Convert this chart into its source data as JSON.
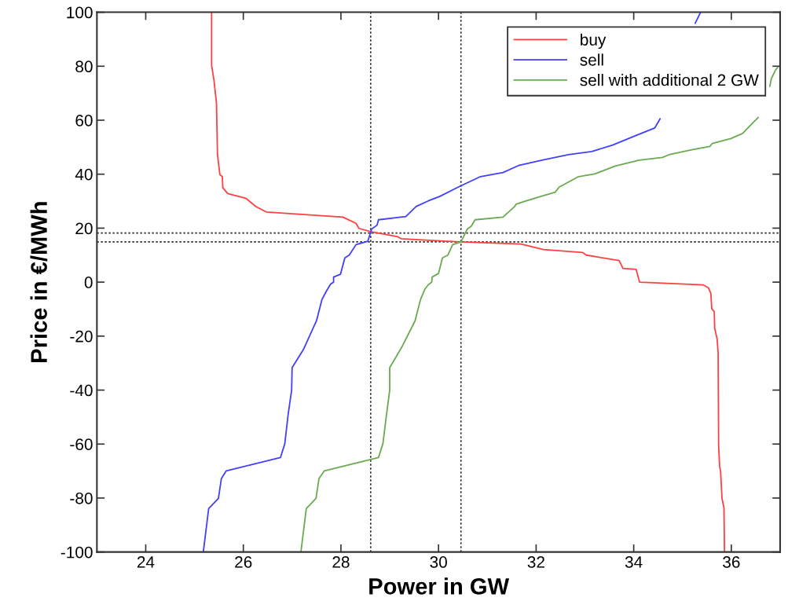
{
  "chart_data": {
    "type": "line",
    "xlabel": "Power in GW",
    "ylabel": "Price in €/MWh",
    "xlim": [
      23,
      37
    ],
    "xticks": [
      24,
      26,
      28,
      30,
      32,
      34,
      36
    ],
    "ylim": [
      -100,
      100
    ],
    "yticks": [
      -100,
      -80,
      -60,
      -40,
      -20,
      0,
      20,
      40,
      60,
      80,
      100
    ],
    "grid": false,
    "legend": "top right",
    "line_style": "solid",
    "marker": "none",
    "series": [
      {
        "name": "buy",
        "color": "#ff4040",
        "x": [
          25.35,
          25.35,
          25.4,
          25.45,
          25.47,
          25.52,
          25.57,
          25.58,
          25.68,
          26.05,
          26.26,
          26.47,
          28.04,
          28.31,
          28.37,
          28.61,
          29.17,
          29.23,
          30.03,
          30.46,
          31.69,
          32.15,
          32.95,
          33.03,
          33.7,
          33.78,
          34.05,
          34.12,
          35.42,
          35.53,
          35.58,
          35.6,
          35.65,
          35.66,
          35.71,
          35.73,
          35.74,
          35.76,
          35.78,
          35.81,
          35.85,
          35.86
        ],
        "values": [
          100,
          80.4,
          74.6,
          66.3,
          47.4,
          39.8,
          39.1,
          35.0,
          32.8,
          31.1,
          28.0,
          26.0,
          24.1,
          21.8,
          19.9,
          18.7,
          16.8,
          16.1,
          15.3,
          14.9,
          14.1,
          12.1,
          11.0,
          10.0,
          8.0,
          5.1,
          4.7,
          0,
          -1.0,
          -2.1,
          -4.1,
          -9.9,
          -10.9,
          -17.2,
          -21.1,
          -26.4,
          -60.4,
          -68.2,
          -70.1,
          -80.3,
          -83.7,
          -100
        ]
      },
      {
        "name": "sell",
        "color": "#4040ff",
        "x": [
          25.18,
          25.29,
          25.49,
          25.55,
          25.65,
          26.76,
          26.85,
          26.92,
          26.99,
          27.0,
          27.23,
          27.5,
          27.61,
          27.71,
          27.79,
          27.85,
          27.85,
          27.99,
          28.08,
          28.17,
          28.31,
          28.55,
          28.63,
          28.74,
          28.77,
          29.33,
          29.54,
          29.79,
          30.03,
          30.4,
          30.86,
          31.32,
          31.64,
          32.12,
          32.66,
          33.14,
          33.57,
          34.0,
          34.43,
          34.54,
          34.9,
          35.26,
          35.37
        ],
        "values": [
          -100,
          -83.9,
          -80.1,
          -72.8,
          -69.9,
          -65.0,
          -59.9,
          -48.8,
          -40.0,
          -31.7,
          -25.0,
          -14.3,
          -6.5,
          -3.1,
          -0.7,
          0,
          1.9,
          2.9,
          9.0,
          10.0,
          13.9,
          15.1,
          19.7,
          21.1,
          23.1,
          24.3,
          28.0,
          30.1,
          31.8,
          35.2,
          39.1,
          40.6,
          43.2,
          45.2,
          47.2,
          48.4,
          50.8,
          54.0,
          57.1,
          60.5,
          null,
          95.9,
          100
        ]
      },
      {
        "name": "sell with additional 2 GW",
        "color": "#6aaa50",
        "x": [
          27.18,
          27.29,
          27.49,
          27.55,
          27.66,
          28.77,
          28.86,
          28.93,
          29.0,
          29.0,
          29.25,
          29.52,
          29.63,
          29.72,
          29.79,
          29.86,
          29.87,
          30.0,
          30.08,
          30.19,
          30.29,
          30.46,
          30.59,
          30.67,
          30.75,
          31.32,
          31.56,
          31.59,
          31.8,
          32.01,
          32.39,
          32.47,
          32.87,
          33.2,
          33.62,
          34.11,
          34.59,
          34.72,
          35.21,
          35.56,
          35.61,
          35.99,
          36.23,
          36.44,
          36.55,
          36.7,
          36.79,
          36.82,
          36.9,
          36.95
        ],
        "values": [
          -100,
          -83.9,
          -80.1,
          -72.8,
          -69.9,
          -65.0,
          -59.9,
          -49.7,
          -40.0,
          -31.7,
          -24.0,
          -14.3,
          -6.5,
          -2.6,
          -1.0,
          0,
          1.9,
          3.2,
          9.0,
          10.0,
          13.9,
          14.9,
          19.7,
          20.7,
          23.1,
          24.1,
          28.0,
          28.9,
          30.1,
          31.3,
          33.3,
          35.2,
          39.1,
          40.1,
          43.0,
          45.2,
          46.2,
          47.2,
          49.1,
          50.3,
          51.4,
          53.2,
          55.1,
          59.0,
          61.0,
          null,
          72.6,
          75.4,
          78.4,
          79.6
        ]
      }
    ],
    "ref_lines": [
      {
        "axis": "x",
        "value": 28.61,
        "color": "#303030",
        "line_style": "dotted"
      },
      {
        "axis": "x",
        "value": 30.46,
        "color": "#303030",
        "line_style": "dotted"
      },
      {
        "axis": "y",
        "value": 18.2,
        "color": "#303030",
        "line_style": "dotted"
      },
      {
        "axis": "y",
        "value": 14.9,
        "color": "#303030",
        "line_style": "dotted"
      }
    ]
  }
}
